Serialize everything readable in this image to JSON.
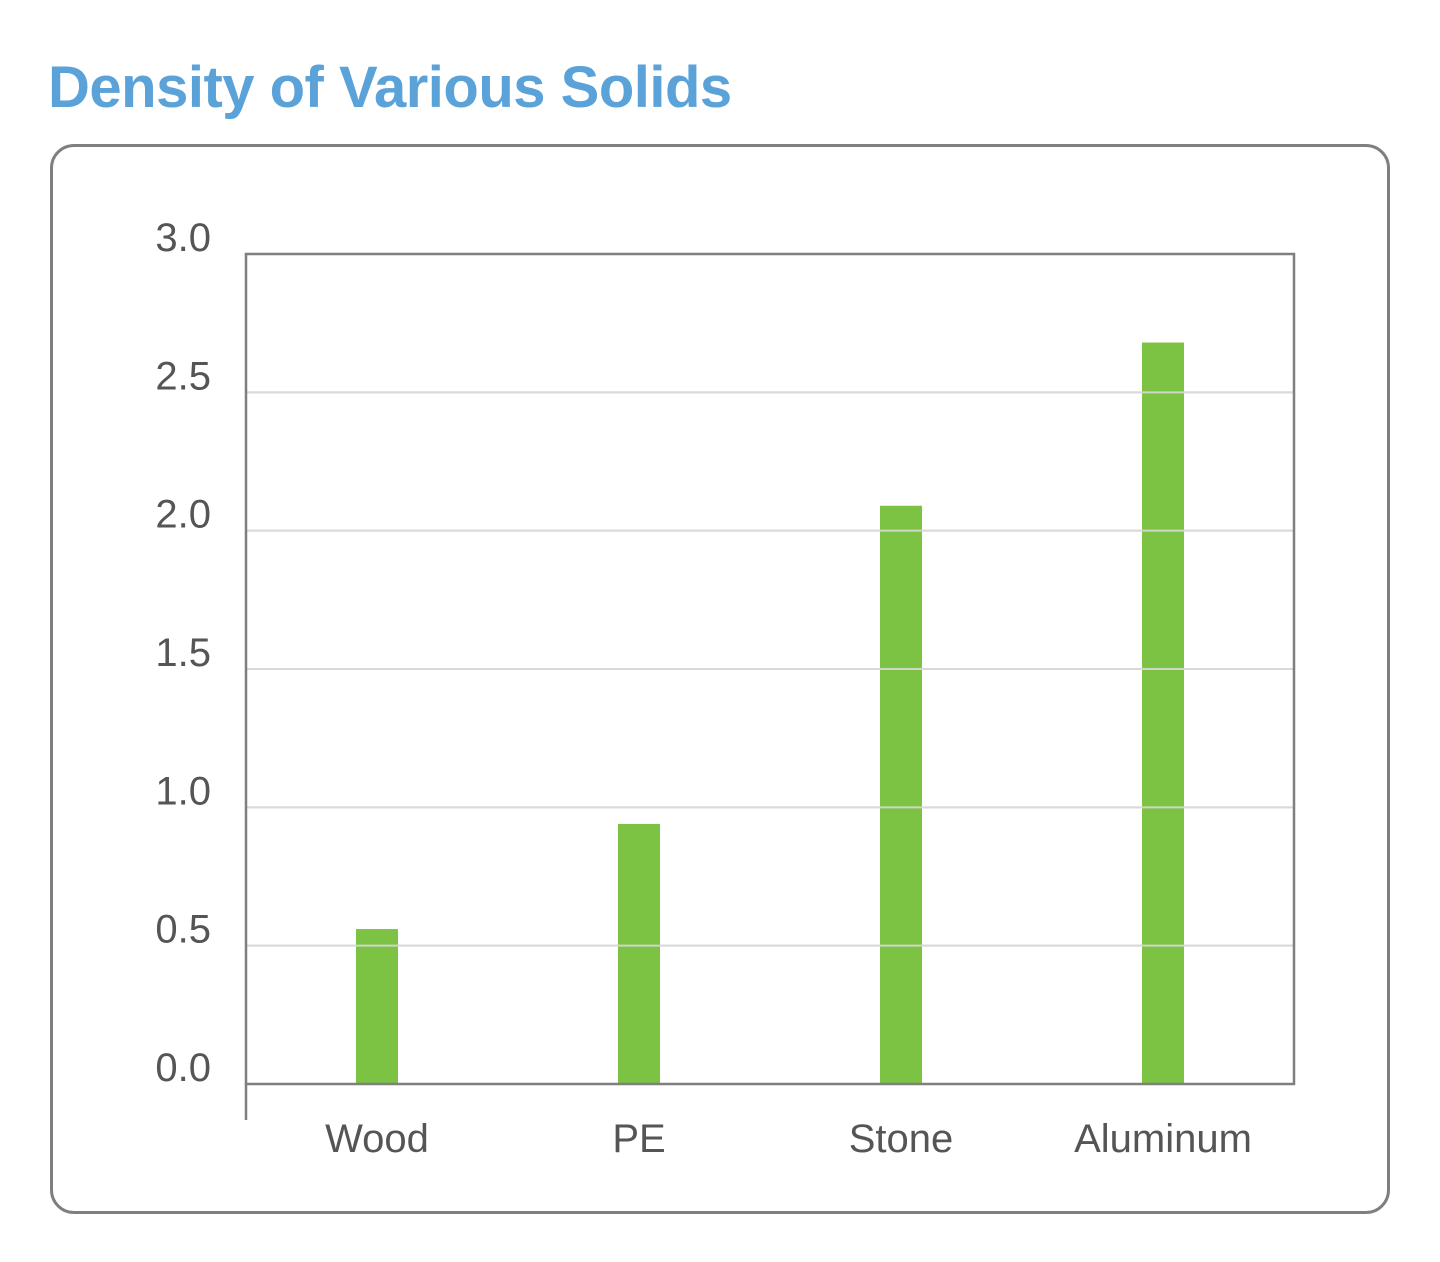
{
  "chart_data": {
    "type": "bar",
    "title": "Density of Various Solids",
    "xlabel": "",
    "ylabel": "",
    "categories": [
      "Wood",
      "PE",
      "Stone",
      "Aluminum"
    ],
    "values": [
      0.56,
      0.94,
      2.09,
      2.68
    ],
    "ylim": [
      0,
      3.0
    ],
    "yticks": [
      "0.0",
      "0.5",
      "1.0",
      "1.5",
      "2.0",
      "2.5",
      "3.0"
    ],
    "grid": true,
    "legend": "none"
  },
  "colors": {
    "title": "#5aa2d8",
    "bar": "#7cc243",
    "gridline": "#d9d9d9",
    "axis": "#7f7f7f",
    "frame": "#7f7f7f",
    "text": "#555555"
  }
}
